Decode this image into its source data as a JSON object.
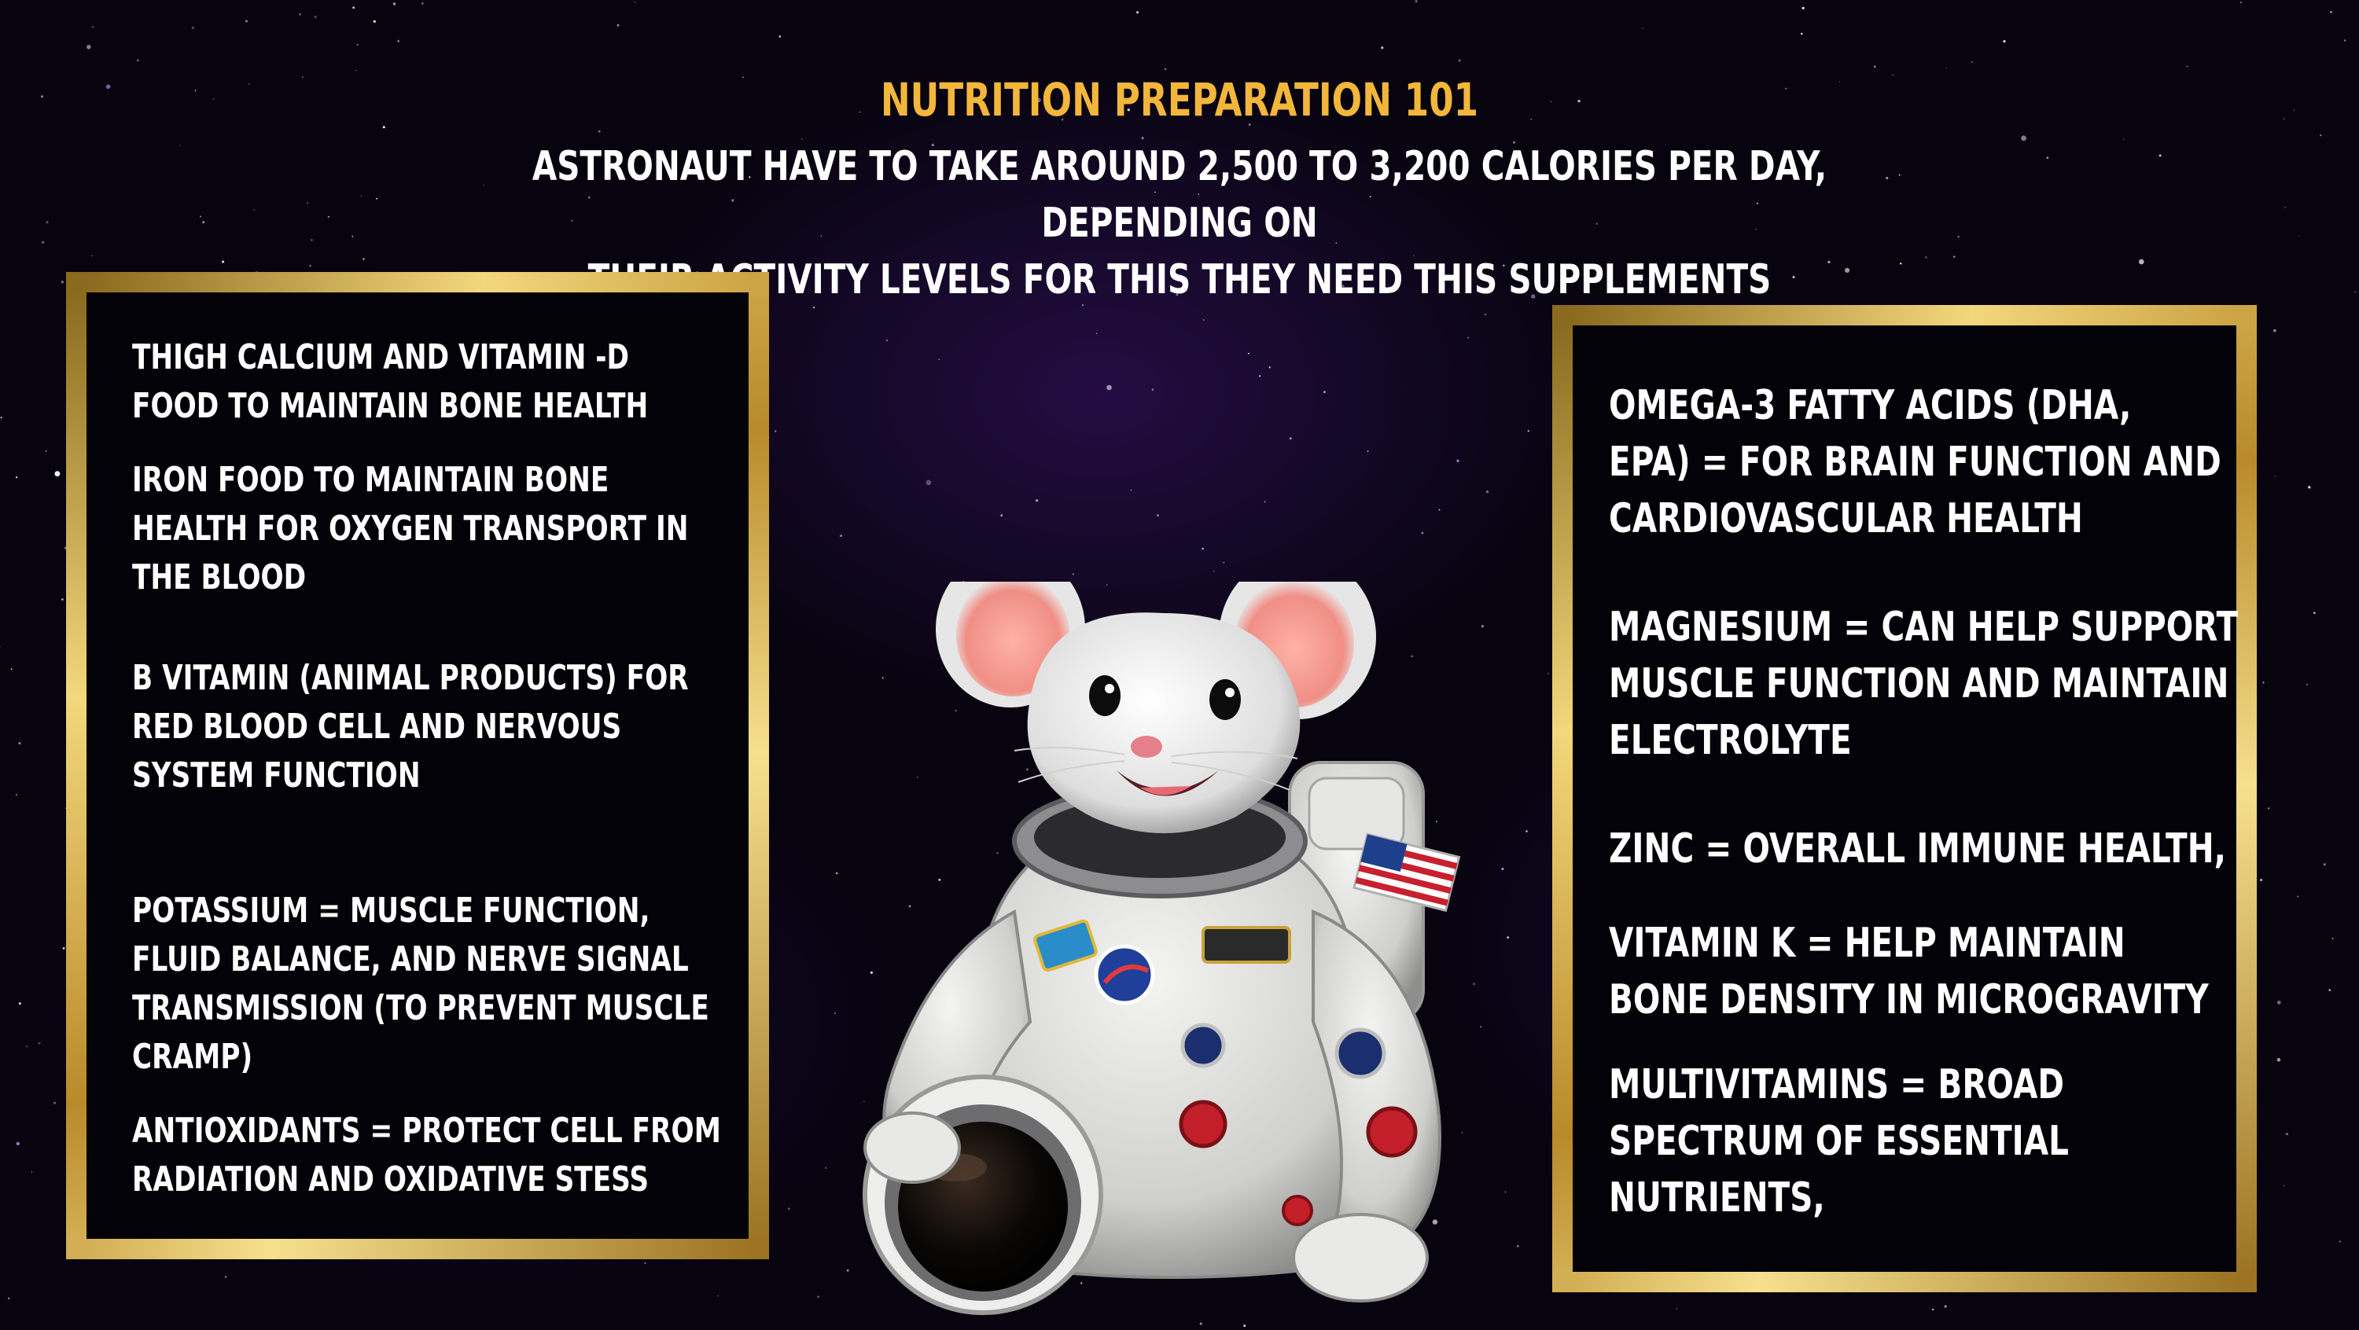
{
  "header": {
    "title": "NUTRITION PREPARATION 101",
    "subtitle_line1": "ASTRONAUT HAVE TO TAKE AROUND  2,500 TO 3,200 CALORIES PER DAY, DEPENDING ON",
    "subtitle_line2": "THEIR ACTIVITY LEVELS FOR THIS THEY NEED THIS SUPPLEMENTS"
  },
  "left_panel": {
    "items": [
      {
        "lines": [
          "THIGH CALCIUM  AND VITAMIN -D",
          "FOOD TO MAINTAIN BONE HEALTH"
        ]
      },
      {
        "lines": [
          "IRON FOOD TO MAINTAIN BONE",
          "HEALTH FOR OXYGEN TRANSPORT IN",
          "THE BLOOD"
        ]
      },
      {
        "lines": [
          "B VITAMIN (ANIMAL PRODUCTS) FOR",
          "RED BLOOD CELL AND NERVOUS",
          "SYSTEM FUNCTION"
        ]
      },
      {
        "lines": [
          "POTASSIUM = MUSCLE FUNCTION,",
          "FLUID BALANCE, AND NERVE SIGNAL",
          "TRANSMISSION (TO PREVENT MUSCLE",
          "CRAMP)"
        ]
      },
      {
        "lines": [
          "ANTIOXIDANTS = PROTECT CELL FROM",
          "RADIATION AND OXIDATIVE STESS"
        ]
      }
    ]
  },
  "right_panel": {
    "items": [
      {
        "lines": [
          "OMEGA-3 FATTY ACIDS (DHA,",
          "EPA) = FOR BRAIN FUNCTION AND",
          "CARDIOVASCULAR HEALTH"
        ]
      },
      {
        "lines": [
          "MAGNESIUM = CAN HELP SUPPORT",
          "MUSCLE FUNCTION AND MAINTAIN",
          "ELECTROLYTE"
        ]
      },
      {
        "lines": [
          "ZINC = OVERALL IMMUNE HEALTH,"
        ]
      },
      {
        "lines": [
          "VITAMIN K = HELP MAINTAIN",
          "BONE DENSITY IN MICROGRAVITY"
        ]
      },
      {
        "lines": [
          "MULTIVITAMINS =  BROAD",
          "SPECTRUM OF ESSENTIAL",
          "NUTRIENTS,"
        ]
      }
    ]
  },
  "colors": {
    "title": "#f2b63b",
    "text": "#ffffff",
    "frame_gold": "#c9a23a",
    "background": "#07040f"
  },
  "illustration": {
    "subject": "mouse-astronaut-icon"
  }
}
